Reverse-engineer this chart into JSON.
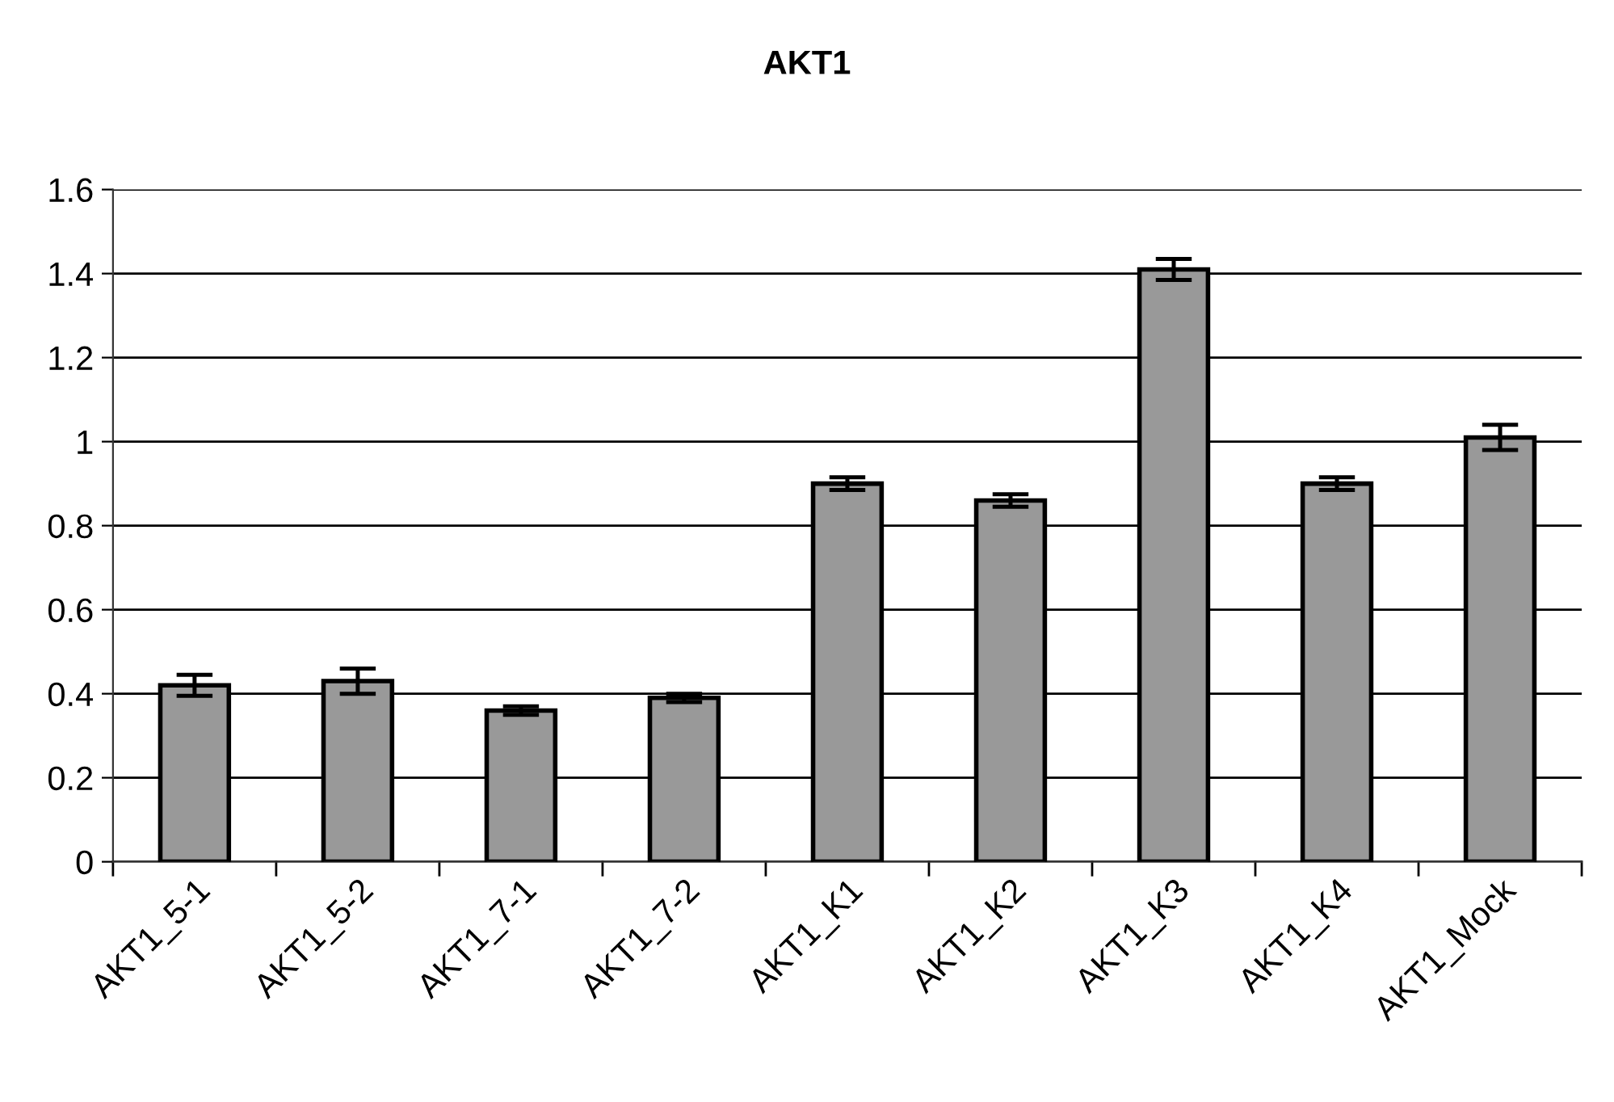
{
  "chart_data": {
    "type": "bar",
    "title": "AKT1",
    "categories": [
      "AKT1_5-1",
      "AKT1_5-2",
      "AKT1_7-1",
      "AKT1_7-2",
      "AKT1_K1",
      "AKT1_K2",
      "AKT1_K3",
      "AKT1_K4",
      "AKT1_Mock"
    ],
    "values": [
      0.42,
      0.43,
      0.36,
      0.39,
      0.9,
      0.86,
      1.41,
      0.9,
      1.01
    ],
    "errors": [
      0.025,
      0.03,
      0.01,
      0.01,
      0.015,
      0.015,
      0.025,
      0.015,
      0.03
    ],
    "color": "#999999",
    "ylim": [
      0,
      1.6
    ],
    "yticks": [
      0,
      0.2,
      0.4,
      0.6,
      0.8,
      1,
      1.2,
      1.4,
      1.6
    ],
    "grid": "y"
  }
}
